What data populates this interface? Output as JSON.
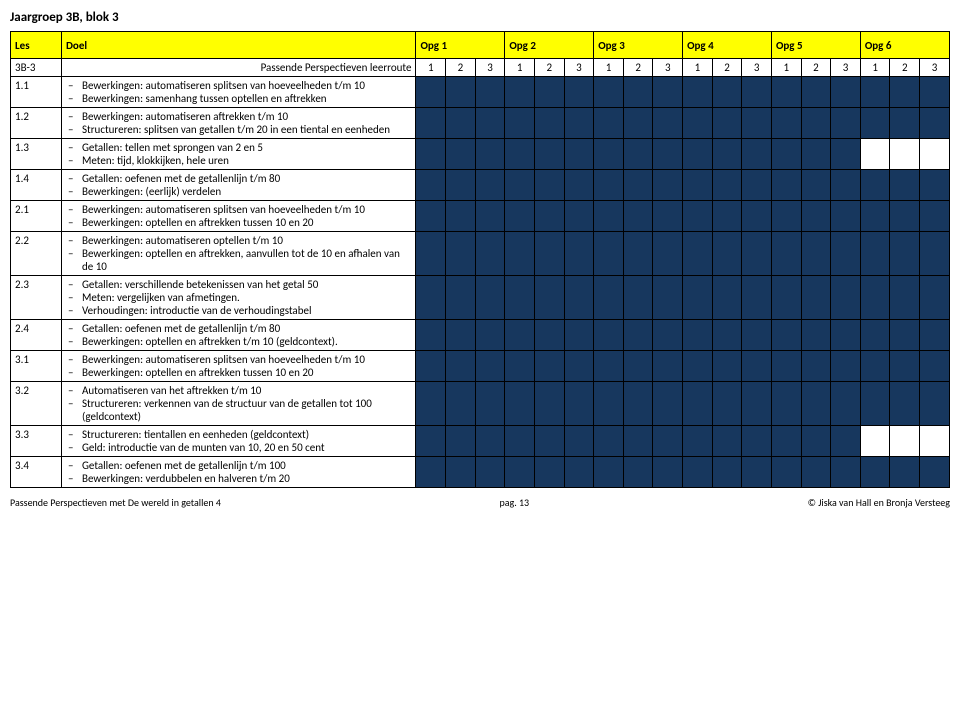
{
  "title": "Jaargroep 3B, blok 3",
  "header": {
    "les": "Les",
    "doel": "Doel",
    "opg": [
      "Opg 1",
      "Opg 2",
      "Opg 3",
      "Opg 4",
      "Opg 5",
      "Opg 6"
    ]
  },
  "legendRow": {
    "code": "3B-3",
    "label": "Passende Perspectieven leerroute",
    "nums": [
      "1",
      "2",
      "3",
      "1",
      "2",
      "3",
      "1",
      "2",
      "3",
      "1",
      "2",
      "3",
      "1",
      "2",
      "3",
      "1",
      "2",
      "3"
    ]
  },
  "rows": [
    {
      "code": "1.1",
      "items": [
        "Bewerkingen: automatiseren splitsen van hoeveelheden t/m 10",
        "Bewerkingen: samenhang tussen optellen en aftrekken"
      ],
      "cells": [
        "b",
        "b",
        "b",
        "b",
        "b",
        "b",
        "b",
        "b",
        "b",
        "b",
        "b",
        "b",
        "b",
        "b",
        "b",
        "b",
        "b",
        "b"
      ]
    },
    {
      "code": "1.2",
      "items": [
        "Bewerkingen: automatiseren aftrekken t/m 10",
        "Structureren: splitsen van getallen t/m 20 in een tiental en eenheden"
      ],
      "cells": [
        "b",
        "b",
        "b",
        "b",
        "b",
        "b",
        "b",
        "b",
        "b",
        "b",
        "b",
        "b",
        "b",
        "b",
        "b",
        "b",
        "b",
        "b"
      ]
    },
    {
      "code": "1.3",
      "items": [
        "Getallen: tellen met sprongen van 2 en 5",
        "Meten: tijd, klokkijken, hele uren"
      ],
      "cells": [
        "b",
        "b",
        "b",
        "b",
        "b",
        "b",
        "b",
        "b",
        "b",
        "b",
        "b",
        "b",
        "b",
        "b",
        "b",
        "w",
        "w",
        "w"
      ]
    },
    {
      "code": "1.4",
      "items": [
        "Getallen: oefenen met de getallenlijn t/m 80",
        "Bewerkingen: (eerlijk) verdelen"
      ],
      "cells": [
        "b",
        "b",
        "b",
        "b",
        "b",
        "b",
        "b",
        "b",
        "b",
        "b",
        "b",
        "b",
        "b",
        "b",
        "b",
        "b",
        "b",
        "b"
      ]
    },
    {
      "code": "2.1",
      "items": [
        "Bewerkingen: automatiseren splitsen van hoeveelheden t/m 10",
        "Bewerkingen: optellen en aftrekken tussen 10 en 20"
      ],
      "cells": [
        "b",
        "b",
        "b",
        "b",
        "b",
        "b",
        "b",
        "b",
        "b",
        "b",
        "b",
        "b",
        "b",
        "b",
        "b",
        "b",
        "b",
        "b"
      ]
    },
    {
      "code": "2.2",
      "items": [
        "Bewerkingen: automatiseren optellen t/m 10",
        "Bewerkingen: optellen en aftrekken, aanvullen tot de 10 en afhalen van de 10"
      ],
      "cells": [
        "b",
        "b",
        "b",
        "b",
        "b",
        "b",
        "b",
        "b",
        "b",
        "b",
        "b",
        "b",
        "b",
        "b",
        "b",
        "b",
        "b",
        "b"
      ]
    },
    {
      "code": "2.3",
      "items": [
        "Getallen: verschillende betekenissen van het getal 50",
        "Meten: vergelijken van afmetingen.",
        "Verhoudingen: introductie van de verhoudingstabel"
      ],
      "cells": [
        "b",
        "b",
        "b",
        "b",
        "b",
        "b",
        "b",
        "b",
        "b",
        "b",
        "b",
        "b",
        "b",
        "b",
        "b",
        "b",
        "b",
        "b"
      ]
    },
    {
      "code": "2.4",
      "items": [
        "Getallen: oefenen met de getallenlijn t/m 80",
        "Bewerkingen: optellen en aftrekken t/m 10 (geldcontext)."
      ],
      "cells": [
        "b",
        "b",
        "b",
        "b",
        "b",
        "b",
        "b",
        "b",
        "b",
        "b",
        "b",
        "b",
        "b",
        "b",
        "b",
        "b",
        "b",
        "b"
      ]
    },
    {
      "code": "3.1",
      "items": [
        "Bewerkingen: automatiseren splitsen van hoeveelheden t/m 10",
        "Bewerkingen: optellen en aftrekken tussen 10 en 20"
      ],
      "cells": [
        "b",
        "b",
        "b",
        "b",
        "b",
        "b",
        "b",
        "b",
        "b",
        "b",
        "b",
        "b",
        "b",
        "b",
        "b",
        "b",
        "b",
        "b"
      ]
    },
    {
      "code": "3.2",
      "items": [
        "Automatiseren van het aftrekken t/m 10",
        "Structureren: verkennen van de structuur van de getallen tot 100 (geldcontext)"
      ],
      "cells": [
        "b",
        "b",
        "b",
        "b",
        "b",
        "b",
        "b",
        "b",
        "b",
        "b",
        "b",
        "b",
        "b",
        "b",
        "b",
        "b",
        "b",
        "b"
      ]
    },
    {
      "code": "3.3",
      "items": [
        "Structureren: tientallen en eenheden (geldcontext)",
        "Geld: introductie van de munten van 10, 20 en 50 cent"
      ],
      "cells": [
        "b",
        "b",
        "b",
        "b",
        "b",
        "b",
        "b",
        "b",
        "b",
        "b",
        "b",
        "b",
        "b",
        "b",
        "b",
        "w",
        "w",
        "w"
      ]
    },
    {
      "code": "3.4",
      "items": [
        "Getallen: oefenen met de getallenlijn t/m 100",
        "Bewerkingen: verdubbelen en halveren t/m 20"
      ],
      "cells": [
        "b",
        "b",
        "b",
        "b",
        "b",
        "b",
        "b",
        "b",
        "b",
        "b",
        "b",
        "b",
        "b",
        "b",
        "b",
        "b",
        "b",
        "b"
      ]
    }
  ],
  "footer": {
    "left": "Passende Perspectieven met De wereld in getallen 4",
    "center": "pag. 13",
    "right": "© Jiska van Hall en Bronja Versteeg"
  },
  "colors": {
    "blue": "#17375e",
    "yellow": "#ffff00",
    "white": "#ffffff"
  }
}
